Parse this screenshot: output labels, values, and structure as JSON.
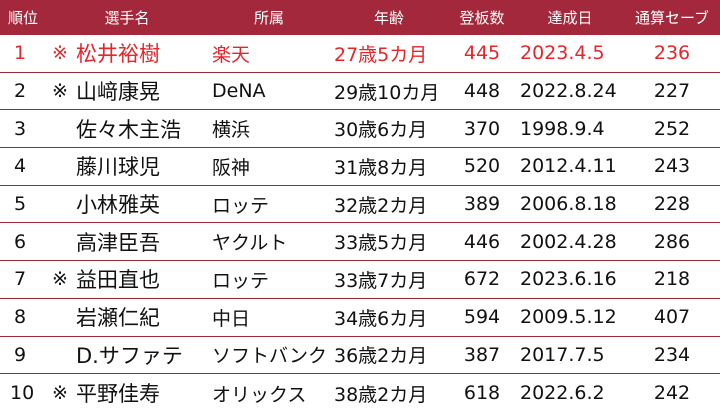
{
  "table": {
    "headers": {
      "rank": "順位",
      "name": "選手名",
      "team": "所属",
      "age": "年齢",
      "games": "登板数",
      "date": "達成日",
      "saves": "通算セーブ"
    },
    "colors": {
      "header_bg": "#a4283b",
      "header_text": "#ffffff",
      "highlight_text": "#e4262b",
      "row_divider": "#9a2a3a"
    },
    "rows": [
      {
        "rank": "1",
        "mark": "※",
        "name": "松井裕樹",
        "team": "楽天",
        "age": "27歳5カ月",
        "games": "445",
        "date": "2023.4.5",
        "saves": "236"
      },
      {
        "rank": "2",
        "mark": "※",
        "name": "山﨑康晃",
        "team": "DeNA",
        "age": "29歳10カ月",
        "games": "448",
        "date": "2022.8.24",
        "saves": "227"
      },
      {
        "rank": "3",
        "mark": "",
        "name": "佐々木主浩",
        "team": "横浜",
        "age": "30歳6カ月",
        "games": "370",
        "date": "1998.9.4",
        "saves": "252"
      },
      {
        "rank": "4",
        "mark": "",
        "name": "藤川球児",
        "team": "阪神",
        "age": "31歳8カ月",
        "games": "520",
        "date": "2012.4.11",
        "saves": "243"
      },
      {
        "rank": "5",
        "mark": "",
        "name": "小林雅英",
        "team": "ロッテ",
        "age": "32歳2カ月",
        "games": "389",
        "date": "2006.8.18",
        "saves": "228"
      },
      {
        "rank": "6",
        "mark": "",
        "name": "高津臣吾",
        "team": "ヤクルト",
        "age": "33歳5カ月",
        "games": "446",
        "date": "2002.4.28",
        "saves": "286"
      },
      {
        "rank": "7",
        "mark": "※",
        "name": "益田直也",
        "team": "ロッテ",
        "age": "33歳7カ月",
        "games": "672",
        "date": "2023.6.16",
        "saves": "218"
      },
      {
        "rank": "8",
        "mark": "",
        "name": "岩瀬仁紀",
        "team": "中日",
        "age": "34歳6カ月",
        "games": "594",
        "date": "2009.5.12",
        "saves": "407"
      },
      {
        "rank": "9",
        "mark": "",
        "name": "D.サファテ",
        "team": "ソフトバンク",
        "age": "36歳2カ月",
        "games": "387",
        "date": "2017.7.5",
        "saves": "234"
      },
      {
        "rank": "10",
        "mark": "※",
        "name": "平野佳寿",
        "team": "オリックス",
        "age": "38歳2カ月",
        "games": "618",
        "date": "2022.6.2",
        "saves": "242"
      }
    ]
  }
}
